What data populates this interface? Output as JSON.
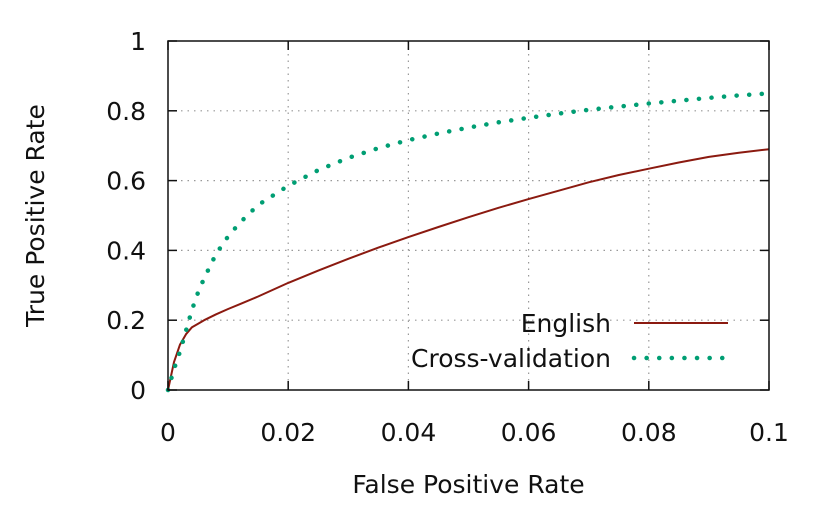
{
  "chart_data": {
    "type": "line",
    "title": "",
    "xlabel": "False Positive Rate",
    "ylabel": "True Positive Rate",
    "xlim": [
      0,
      0.1
    ],
    "ylim": [
      0,
      1
    ],
    "xticks": [
      0,
      0.02,
      0.04,
      0.06,
      0.08,
      0.1
    ],
    "xtick_labels": [
      "0",
      "0.02",
      "0.04",
      "0.06",
      "0.08",
      "0.1"
    ],
    "yticks": [
      0,
      0.2,
      0.4,
      0.6,
      0.8,
      1
    ],
    "ytick_labels": [
      "0",
      "0.2",
      "0.4",
      "0.6",
      "0.8",
      "1"
    ],
    "grid": true,
    "legend_position": "bottom-right",
    "series": [
      {
        "name": "English",
        "color": "#8b1a10",
        "style": "solid",
        "x": [
          0,
          0.001,
          0.002,
          0.003,
          0.004,
          0.005,
          0.006,
          0.008,
          0.01,
          0.012,
          0.015,
          0.02,
          0.025,
          0.03,
          0.035,
          0.04,
          0.045,
          0.05,
          0.055,
          0.06,
          0.065,
          0.07,
          0.075,
          0.08,
          0.085,
          0.09,
          0.095,
          0.1
        ],
        "y": [
          0,
          0.08,
          0.13,
          0.16,
          0.18,
          0.19,
          0.2,
          0.217,
          0.232,
          0.246,
          0.268,
          0.307,
          0.342,
          0.376,
          0.408,
          0.438,
          0.467,
          0.495,
          0.522,
          0.547,
          0.571,
          0.595,
          0.616,
          0.634,
          0.652,
          0.668,
          0.68,
          0.69
        ]
      },
      {
        "name": "Cross-validation",
        "color": "#009e73",
        "style": "dotted",
        "x": [
          0,
          0.001,
          0.002,
          0.003,
          0.004,
          0.005,
          0.006,
          0.008,
          0.01,
          0.012,
          0.015,
          0.02,
          0.025,
          0.03,
          0.035,
          0.04,
          0.045,
          0.05,
          0.055,
          0.06,
          0.065,
          0.07,
          0.075,
          0.08,
          0.085,
          0.09,
          0.095,
          0.1
        ],
        "y": [
          0,
          0.06,
          0.11,
          0.17,
          0.23,
          0.28,
          0.32,
          0.39,
          0.44,
          0.48,
          0.53,
          0.585,
          0.63,
          0.665,
          0.693,
          0.716,
          0.735,
          0.752,
          0.767,
          0.78,
          0.792,
          0.803,
          0.812,
          0.821,
          0.829,
          0.837,
          0.844,
          0.85
        ]
      }
    ]
  }
}
